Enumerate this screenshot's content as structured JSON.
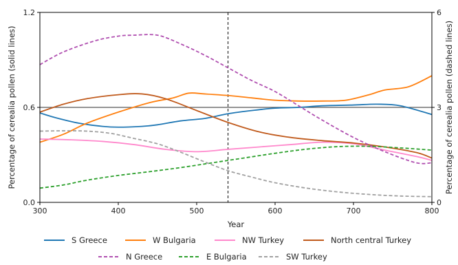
{
  "chart_data": {
    "type": "line",
    "xlabel": "Year",
    "ylabel_left": "Percentage of cerealia pollen (solid lines)",
    "ylabel_right": "Percentage of cerealia pollen (dashed lines)",
    "xlim": [
      300,
      800
    ],
    "ylim_left": [
      0,
      1.2
    ],
    "ylim_right": [
      0,
      6
    ],
    "x_ticks": [
      300,
      400,
      500,
      600,
      700,
      800
    ],
    "y_left_ticks": [
      0.0,
      0.6,
      1.2
    ],
    "y_left_tick_labels": [
      "0.0",
      "0.6",
      "1.2"
    ],
    "y_right_ticks": [
      0,
      3,
      6
    ],
    "y_right_tick_labels": [
      "0",
      "3",
      "6"
    ],
    "reference_line": {
      "axis": "left",
      "y": 0.6,
      "color": "#555555"
    },
    "vertical_marker": {
      "x": 540,
      "style": "dashed",
      "color": "#000000"
    },
    "legend_position": "bottom",
    "series": [
      {
        "name": "S Greece",
        "axis": "left",
        "style": "solid",
        "color": "#1f77b4",
        "x": [
          300,
          320,
          350,
          380,
          400,
          430,
          450,
          480,
          510,
          540,
          570,
          600,
          630,
          660,
          700,
          730,
          760,
          800
        ],
        "y": [
          0.565,
          0.535,
          0.5,
          0.48,
          0.475,
          0.48,
          0.49,
          0.515,
          0.53,
          0.56,
          0.58,
          0.595,
          0.6,
          0.61,
          0.615,
          0.62,
          0.61,
          0.555
        ]
      },
      {
        "name": "W Bulgaria",
        "axis": "left",
        "style": "solid",
        "color": "#ff7f0e",
        "x": [
          300,
          330,
          360,
          400,
          440,
          470,
          490,
          510,
          540,
          570,
          600,
          630,
          660,
          690,
          720,
          740,
          770,
          800
        ],
        "y": [
          0.38,
          0.43,
          0.5,
          0.57,
          0.63,
          0.66,
          0.69,
          0.685,
          0.675,
          0.66,
          0.645,
          0.64,
          0.64,
          0.645,
          0.68,
          0.71,
          0.73,
          0.8
        ]
      },
      {
        "name": "NW Turkey",
        "axis": "left",
        "style": "solid",
        "color": "#ff88cc",
        "x": [
          300,
          340,
          380,
          420,
          460,
          500,
          540,
          580,
          620,
          660,
          700,
          740,
          780,
          800
        ],
        "y": [
          0.4,
          0.395,
          0.385,
          0.365,
          0.335,
          0.32,
          0.335,
          0.35,
          0.365,
          0.38,
          0.37,
          0.33,
          0.29,
          0.265
        ]
      },
      {
        "name": "North central Turkey",
        "axis": "left",
        "style": "solid",
        "color": "#c05a1c",
        "x": [
          300,
          330,
          360,
          400,
          430,
          460,
          500,
          540,
          580,
          620,
          660,
          700,
          740,
          780,
          800
        ],
        "y": [
          0.57,
          0.62,
          0.655,
          0.68,
          0.685,
          0.655,
          0.58,
          0.505,
          0.445,
          0.41,
          0.39,
          0.375,
          0.35,
          0.315,
          0.28
        ]
      },
      {
        "name": "N Greece",
        "axis": "right",
        "style": "dashed",
        "color": "#b04fb0",
        "x": [
          300,
          330,
          370,
          400,
          420,
          450,
          480,
          510,
          540,
          570,
          600,
          630,
          660,
          700,
          740,
          780,
          800
        ],
        "y": [
          4.35,
          4.75,
          5.1,
          5.25,
          5.28,
          5.28,
          5.0,
          4.65,
          4.25,
          3.85,
          3.5,
          3.05,
          2.6,
          2.05,
          1.6,
          1.25,
          1.25
        ]
      },
      {
        "name": "E Bulgaria",
        "axis": "right",
        "style": "dashed",
        "color": "#2ca02c",
        "x": [
          300,
          330,
          360,
          400,
          440,
          480,
          520,
          560,
          600,
          640,
          680,
          720,
          760,
          800
        ],
        "y": [
          0.45,
          0.55,
          0.7,
          0.85,
          0.97,
          1.1,
          1.25,
          1.4,
          1.55,
          1.68,
          1.76,
          1.77,
          1.72,
          1.65
        ]
      },
      {
        "name": "SW Turkey",
        "axis": "right",
        "style": "dashed",
        "color": "#a0a0a0",
        "x": [
          300,
          330,
          360,
          390,
          420,
          450,
          480,
          510,
          540,
          570,
          600,
          640,
          680,
          720,
          760,
          800
        ],
        "y": [
          2.25,
          2.26,
          2.25,
          2.18,
          2.02,
          1.85,
          1.58,
          1.28,
          1.0,
          0.8,
          0.62,
          0.45,
          0.33,
          0.25,
          0.2,
          0.18
        ]
      }
    ]
  }
}
